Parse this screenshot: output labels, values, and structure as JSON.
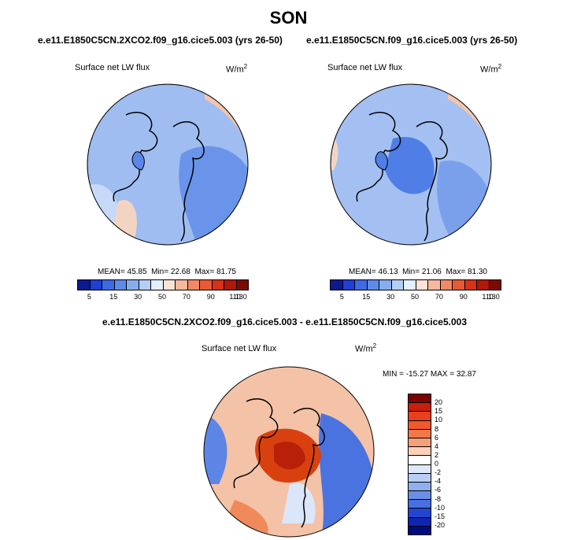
{
  "season": "SON",
  "panels": [
    {
      "title": "e.e11.E1850C5CN.2XCO2.f09_g16.cice5.003 (yrs 26-50)",
      "variable": "Surface net LW flux",
      "units_base": "W/m",
      "units_exp": "2",
      "mean_label": "MEAN=",
      "mean": "45.85",
      "min_label": "Min=",
      "min": "22.68",
      "max_label": "Max=",
      "max": "81.75"
    },
    {
      "title": "e.e11.E1850C5CN.f09_g16.cice5.003 (yrs 26-50)",
      "variable": "Surface net LW flux",
      "units_base": "W/m",
      "units_exp": "2",
      "mean_label": "MEAN=",
      "mean": "46.13",
      "min_label": "Min=",
      "min": "21.06",
      "max_label": "Max=",
      "max": "81.30"
    }
  ],
  "abs_colorbar": {
    "colors": [
      "#0b1a8c",
      "#1f3fd6",
      "#3f6ae6",
      "#5f8ae8",
      "#86aeee",
      "#b4cff6",
      "#e4efff",
      "#fbe3d6",
      "#f6b89e",
      "#f08a66",
      "#e85a34",
      "#d83218",
      "#b01808",
      "#7a0a04"
    ],
    "ticks": [
      "5",
      "15",
      "30",
      "50",
      "70",
      "90",
      "110",
      "130"
    ]
  },
  "diff": {
    "title": "e.e11.E1850C5CN.2XCO2.f09_g16.cice5.003 - e.e11.E1850C5CN.f09_g16.cice5.003",
    "variable": "Surface net LW flux",
    "units_base": "W/m",
    "units_exp": "2",
    "stats": "MIN = -15.27 MAX =  32.87",
    "colorbar": {
      "colors": [
        "#800000",
        "#c81e0a",
        "#e8401a",
        "#f05a2a",
        "#f2784a",
        "#f6a07a",
        "#fbd0b8",
        "#ffffff",
        "#dde8fb",
        "#b8cef5",
        "#8eb0ee",
        "#6a8fe6",
        "#4a6fe0",
        "#2246d2",
        "#0e26b0",
        "#000a80"
      ],
      "labels": [
        "20",
        "15",
        "10",
        "8",
        "6",
        "4",
        "2",
        "0",
        "-2",
        "-4",
        "-6",
        "-8",
        "-10",
        "-15",
        "-20"
      ]
    }
  },
  "colors": {
    "land_blue": "#5b87e8",
    "ocean_blue": "#a9c4f2",
    "pale": "#dfe9fb",
    "warm": "#f5b090",
    "hot": "#d83a12"
  }
}
